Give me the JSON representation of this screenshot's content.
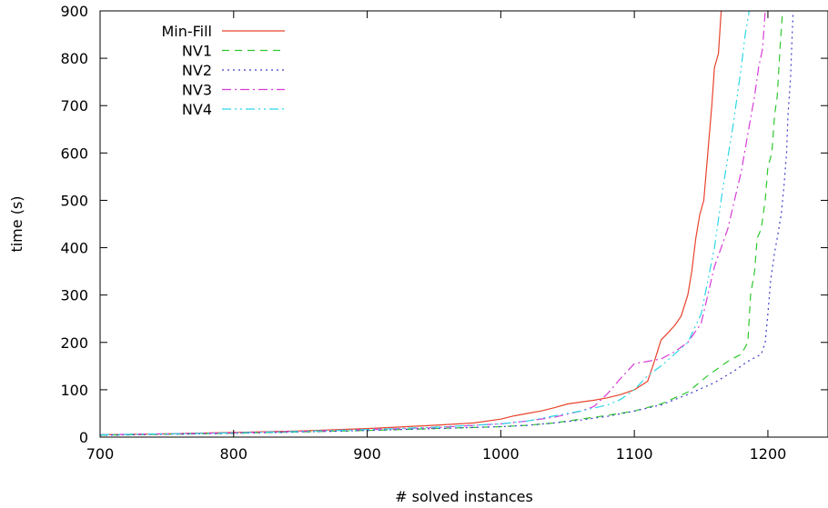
{
  "chart_data": {
    "type": "line",
    "title": "",
    "xlabel": "# solved instances",
    "ylabel": "time (s)",
    "xlim": [
      700,
      1245
    ],
    "ylim": [
      0,
      900
    ],
    "xticks": [
      700,
      800,
      900,
      1000,
      1100,
      1200
    ],
    "yticks": [
      0,
      100,
      200,
      300,
      400,
      500,
      600,
      700,
      800,
      900
    ],
    "grid": false,
    "legend_position": "top-left",
    "series": [
      {
        "name": "Min-Fill",
        "color": "#e8432c",
        "dash": "solid",
        "points": [
          [
            700,
            5
          ],
          [
            750,
            7
          ],
          [
            800,
            10
          ],
          [
            850,
            13
          ],
          [
            900,
            18
          ],
          [
            950,
            25
          ],
          [
            980,
            30
          ],
          [
            1000,
            38
          ],
          [
            1010,
            45
          ],
          [
            1020,
            50
          ],
          [
            1030,
            55
          ],
          [
            1040,
            62
          ],
          [
            1050,
            70
          ],
          [
            1060,
            74
          ],
          [
            1070,
            78
          ],
          [
            1080,
            83
          ],
          [
            1090,
            90
          ],
          [
            1100,
            100
          ],
          [
            1110,
            118
          ],
          [
            1115,
            160
          ],
          [
            1120,
            205
          ],
          [
            1125,
            220
          ],
          [
            1130,
            235
          ],
          [
            1135,
            255
          ],
          [
            1140,
            300
          ],
          [
            1143,
            350
          ],
          [
            1146,
            420
          ],
          [
            1149,
            470
          ],
          [
            1152,
            500
          ],
          [
            1155,
            600
          ],
          [
            1158,
            700
          ],
          [
            1160,
            780
          ],
          [
            1163,
            810
          ],
          [
            1165,
            900
          ]
        ]
      },
      {
        "name": "NV1",
        "color": "#2ec82e",
        "dash": "8,6",
        "points": [
          [
            700,
            4
          ],
          [
            750,
            6
          ],
          [
            800,
            8
          ],
          [
            850,
            11
          ],
          [
            900,
            14
          ],
          [
            950,
            18
          ],
          [
            1000,
            22
          ],
          [
            1020,
            25
          ],
          [
            1040,
            30
          ],
          [
            1060,
            38
          ],
          [
            1080,
            46
          ],
          [
            1100,
            55
          ],
          [
            1120,
            70
          ],
          [
            1140,
            95
          ],
          [
            1155,
            130
          ],
          [
            1170,
            160
          ],
          [
            1180,
            175
          ],
          [
            1185,
            200
          ],
          [
            1187,
            300
          ],
          [
            1190,
            350
          ],
          [
            1192,
            420
          ],
          [
            1195,
            440
          ],
          [
            1198,
            500
          ],
          [
            1200,
            570
          ],
          [
            1203,
            600
          ],
          [
            1205,
            680
          ],
          [
            1207,
            720
          ],
          [
            1209,
            820
          ],
          [
            1211,
            900
          ]
        ]
      },
      {
        "name": "NV2",
        "color": "#3c3cc8",
        "dash": "2,4",
        "points": [
          [
            700,
            4
          ],
          [
            750,
            6
          ],
          [
            800,
            8
          ],
          [
            850,
            11
          ],
          [
            900,
            14
          ],
          [
            950,
            18
          ],
          [
            1000,
            22
          ],
          [
            1020,
            25
          ],
          [
            1040,
            30
          ],
          [
            1060,
            36
          ],
          [
            1080,
            44
          ],
          [
            1100,
            55
          ],
          [
            1120,
            68
          ],
          [
            1140,
            90
          ],
          [
            1160,
            115
          ],
          [
            1175,
            140
          ],
          [
            1185,
            160
          ],
          [
            1195,
            175
          ],
          [
            1198,
            200
          ],
          [
            1200,
            260
          ],
          [
            1202,
            330
          ],
          [
            1205,
            390
          ],
          [
            1207,
            420
          ],
          [
            1210,
            470
          ],
          [
            1212,
            530
          ],
          [
            1214,
            600
          ],
          [
            1215,
            680
          ],
          [
            1217,
            760
          ],
          [
            1218,
            840
          ],
          [
            1219,
            900
          ]
        ]
      },
      {
        "name": "NV3",
        "color": "#d63cd6",
        "dash": "10,4,2,4",
        "points": [
          [
            700,
            5
          ],
          [
            750,
            7
          ],
          [
            800,
            9
          ],
          [
            850,
            12
          ],
          [
            900,
            16
          ],
          [
            950,
            20
          ],
          [
            1000,
            28
          ],
          [
            1020,
            34
          ],
          [
            1040,
            42
          ],
          [
            1060,
            55
          ],
          [
            1070,
            65
          ],
          [
            1080,
            92
          ],
          [
            1090,
            125
          ],
          [
            1100,
            155
          ],
          [
            1110,
            160
          ],
          [
            1120,
            165
          ],
          [
            1130,
            180
          ],
          [
            1140,
            200
          ],
          [
            1150,
            240
          ],
          [
            1155,
            300
          ],
          [
            1160,
            360
          ],
          [
            1165,
            400
          ],
          [
            1170,
            440
          ],
          [
            1175,
            500
          ],
          [
            1180,
            560
          ],
          [
            1185,
            640
          ],
          [
            1190,
            720
          ],
          [
            1193,
            780
          ],
          [
            1196,
            820
          ],
          [
            1198,
            900
          ]
        ]
      },
      {
        "name": "NV4",
        "color": "#2cd6e6",
        "dash": "10,4,2,4,2,4",
        "points": [
          [
            700,
            5
          ],
          [
            750,
            7
          ],
          [
            800,
            9
          ],
          [
            850,
            12
          ],
          [
            900,
            16
          ],
          [
            950,
            21
          ],
          [
            1000,
            28
          ],
          [
            1020,
            34
          ],
          [
            1040,
            45
          ],
          [
            1060,
            55
          ],
          [
            1080,
            68
          ],
          [
            1090,
            80
          ],
          [
            1100,
            100
          ],
          [
            1110,
            130
          ],
          [
            1120,
            150
          ],
          [
            1130,
            175
          ],
          [
            1140,
            200
          ],
          [
            1150,
            260
          ],
          [
            1155,
            330
          ],
          [
            1160,
            400
          ],
          [
            1163,
            460
          ],
          [
            1166,
            520
          ],
          [
            1170,
            590
          ],
          [
            1174,
            660
          ],
          [
            1177,
            720
          ],
          [
            1180,
            780
          ],
          [
            1183,
            850
          ],
          [
            1186,
            900
          ]
        ]
      }
    ]
  }
}
